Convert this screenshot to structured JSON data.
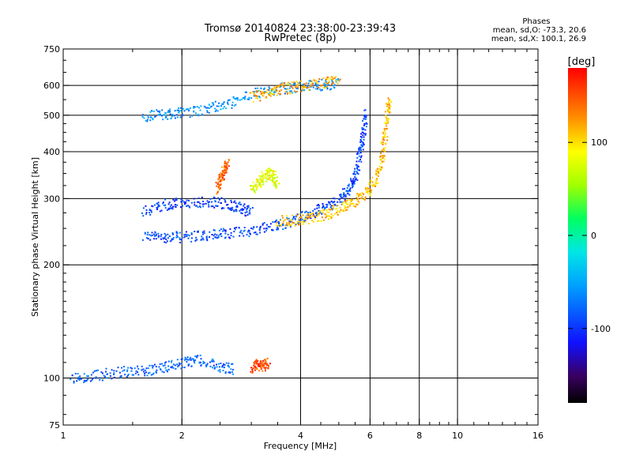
{
  "title": {
    "line1": "Tromsø 20140824 23:38:00-23:39:43",
    "line2": "RwPretec (8p)"
  },
  "phase_stats": {
    "header": "Phases",
    "line_o": "mean, sd,O: -73.3, 20.6",
    "line_x": "mean, sd,X: 100.1, 26.9"
  },
  "colorbar": {
    "unit_label": "[deg]",
    "tick_labels": [
      "100",
      "0",
      "-100"
    ],
    "tick_values": [
      100,
      0,
      -100
    ],
    "range": [
      -180,
      180
    ]
  },
  "chart_data": {
    "type": "scatter",
    "xlabel": "Frequency [MHz]",
    "ylabel": "Stationary phase Virtual Height [km]",
    "xscale": "log",
    "yscale": "log",
    "xlim": [
      1,
      16
    ],
    "ylim": [
      75,
      750
    ],
    "x_ticks": [
      1,
      2,
      4,
      6,
      8,
      10,
      16
    ],
    "x_tick_labels": [
      "1",
      "2",
      "4",
      "6",
      "8",
      "10",
      "16"
    ],
    "x_grid": [
      2,
      4,
      6,
      8,
      10
    ],
    "y_ticks": [
      75,
      100,
      200,
      300,
      400,
      500,
      600,
      750
    ],
    "y_tick_labels": [
      "75",
      "100",
      "200",
      "300",
      "400",
      "500",
      "600",
      "750"
    ],
    "y_grid": [
      100,
      200,
      300,
      400,
      500,
      600
    ],
    "grid": true,
    "traces": [
      {
        "name_hint": "F-layer O-mode lower branch",
        "phase": -90,
        "points": [
          [
            1.6,
            240
          ],
          [
            1.8,
            238
          ],
          [
            2.0,
            238
          ],
          [
            2.3,
            240
          ],
          [
            2.6,
            243
          ],
          [
            3.0,
            248
          ],
          [
            3.4,
            255
          ],
          [
            3.8,
            262
          ],
          [
            4.2,
            272
          ],
          [
            4.6,
            285
          ],
          [
            5.0,
            300
          ],
          [
            5.3,
            320
          ],
          [
            5.5,
            350
          ],
          [
            5.65,
            400
          ],
          [
            5.75,
            450
          ],
          [
            5.85,
            520
          ]
        ]
      },
      {
        "name_hint": "F-layer X-mode branch",
        "phase": 110,
        "points": [
          [
            3.5,
            262
          ],
          [
            3.9,
            264
          ],
          [
            4.3,
            268
          ],
          [
            4.7,
            275
          ],
          [
            5.1,
            285
          ],
          [
            5.5,
            298
          ],
          [
            5.9,
            315
          ],
          [
            6.2,
            340
          ],
          [
            6.4,
            380
          ],
          [
            6.5,
            430
          ],
          [
            6.6,
            500
          ],
          [
            6.7,
            560
          ]
        ]
      },
      {
        "name_hint": "F-layer low-frequency band",
        "phase": -95,
        "points": [
          [
            1.6,
            280
          ],
          [
            1.8,
            290
          ],
          [
            2.0,
            295
          ],
          [
            2.3,
            295
          ],
          [
            2.6,
            292
          ],
          [
            2.8,
            285
          ],
          [
            3.0,
            275
          ]
        ]
      },
      {
        "name_hint": "Sporadic F 2nd hop",
        "phase": -60,
        "points": [
          [
            1.6,
            500
          ],
          [
            1.8,
            505
          ],
          [
            2.0,
            510
          ],
          [
            2.3,
            520
          ],
          [
            2.6,
            540
          ],
          [
            3.0,
            570
          ],
          [
            3.5,
            590
          ],
          [
            4.0,
            600
          ],
          [
            4.5,
            605
          ],
          [
            5.0,
            610
          ]
        ]
      },
      {
        "name_hint": "Upper echo X-mode",
        "phase": 120,
        "points": [
          [
            3.0,
            560
          ],
          [
            3.3,
            575
          ],
          [
            3.6,
            590
          ],
          [
            4.0,
            600
          ],
          [
            4.5,
            610
          ],
          [
            5.0,
            620
          ]
        ]
      },
      {
        "name_hint": "E-layer",
        "phase": -80,
        "points": [
          [
            1.05,
            100
          ],
          [
            1.2,
            102
          ],
          [
            1.4,
            104
          ],
          [
            1.6,
            105
          ],
          [
            1.8,
            107
          ],
          [
            2.0,
            110
          ],
          [
            2.2,
            112
          ],
          [
            2.5,
            108
          ],
          [
            2.7,
            106
          ]
        ]
      },
      {
        "name_hint": "E-layer X-mode",
        "phase": 150,
        "points": [
          [
            3.0,
            107
          ],
          [
            3.1,
            109
          ],
          [
            3.2,
            108
          ],
          [
            3.3,
            110
          ]
        ]
      },
      {
        "name_hint": "Yellow patch near 3.2 MHz",
        "phase": 80,
        "points": [
          [
            3.0,
            320
          ],
          [
            3.1,
            330
          ],
          [
            3.2,
            340
          ],
          [
            3.3,
            355
          ],
          [
            3.4,
            345
          ],
          [
            3.5,
            330
          ]
        ]
      },
      {
        "name_hint": "Orange patch near 2.5 MHz",
        "phase": 140,
        "points": [
          [
            2.45,
            320
          ],
          [
            2.5,
            340
          ],
          [
            2.55,
            360
          ],
          [
            2.6,
            380
          ]
        ]
      }
    ]
  }
}
